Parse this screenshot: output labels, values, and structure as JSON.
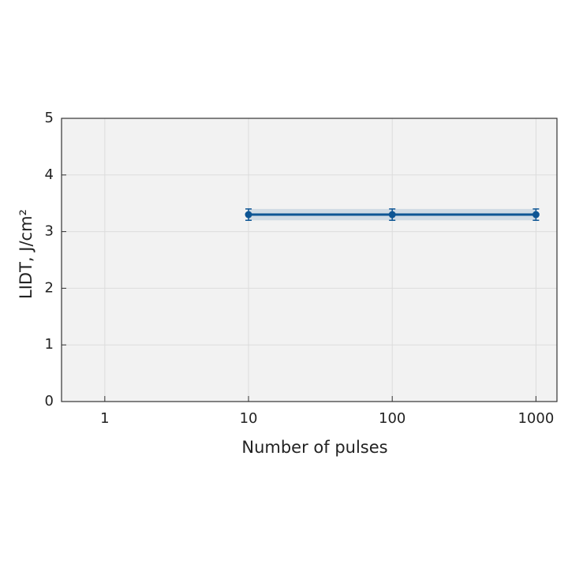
{
  "chart_data": {
    "type": "line",
    "xlabel": "Number of pulses",
    "ylabel": "LIDT, J/cm²",
    "x": [
      10,
      100,
      1000
    ],
    "series": [
      {
        "color": "#0d5594",
        "values": [
          3.3,
          3.3,
          3.3
        ],
        "errors": [
          0.1,
          0.1,
          0.1
        ]
      }
    ],
    "xscale": "log",
    "xlim": [
      0.5,
      1400
    ],
    "xticks": [
      1,
      10,
      100,
      1000
    ],
    "ylim": [
      0,
      5
    ],
    "yticks": [
      0,
      1,
      2,
      3,
      4,
      5
    ],
    "grid": true
  }
}
